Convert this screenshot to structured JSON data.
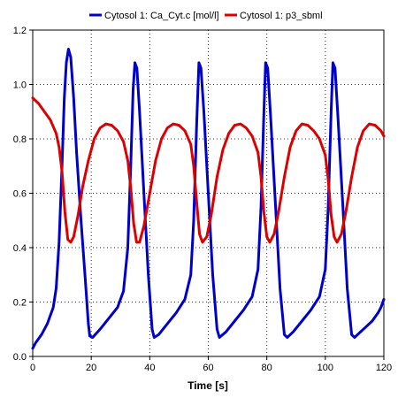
{
  "chart_data": {
    "type": "line",
    "xlabel": "Time [s]",
    "ylabel": "",
    "xlim": [
      0,
      120
    ],
    "ylim": [
      0.0,
      1.2
    ],
    "x_ticks": [
      0,
      20,
      40,
      60,
      80,
      100,
      120
    ],
    "y_ticks": [
      0.0,
      0.2,
      0.4,
      0.6,
      0.8,
      1.0,
      1.2
    ],
    "y_tick_labels": [
      "0.0",
      "0.2",
      "0.4",
      "0.6",
      "0.8",
      "1.0",
      "1.2"
    ],
    "grid": true,
    "legend_position": "top",
    "series": [
      {
        "name": "Cytosol 1: Ca_Cyt.c [mol/l]",
        "color": "#0000cc",
        "points": [
          [
            0,
            0.03
          ],
          [
            1,
            0.05
          ],
          [
            3,
            0.08
          ],
          [
            5,
            0.12
          ],
          [
            7,
            0.18
          ],
          [
            8,
            0.25
          ],
          [
            9,
            0.42
          ],
          [
            10,
            0.7
          ],
          [
            10.8,
            0.95
          ],
          [
            11.5,
            1.08
          ],
          [
            12.2,
            1.13
          ],
          [
            13,
            1.1
          ],
          [
            14,
            0.95
          ],
          [
            15,
            0.75
          ],
          [
            16.5,
            0.5
          ],
          [
            18,
            0.28
          ],
          [
            19,
            0.12
          ],
          [
            19.5,
            0.075
          ],
          [
            20.5,
            0.07
          ],
          [
            23,
            0.1
          ],
          [
            26,
            0.14
          ],
          [
            29,
            0.18
          ],
          [
            31,
            0.24
          ],
          [
            32.5,
            0.4
          ],
          [
            33.5,
            0.7
          ],
          [
            34.3,
            0.98
          ],
          [
            34.9,
            1.08
          ],
          [
            35.6,
            1.06
          ],
          [
            36.5,
            0.9
          ],
          [
            38,
            0.6
          ],
          [
            39.5,
            0.3
          ],
          [
            40.8,
            0.1
          ],
          [
            41.5,
            0.07
          ],
          [
            43,
            0.08
          ],
          [
            46,
            0.12
          ],
          [
            49,
            0.16
          ],
          [
            52,
            0.21
          ],
          [
            54,
            0.3
          ],
          [
            55,
            0.5
          ],
          [
            56,
            0.85
          ],
          [
            56.8,
            1.08
          ],
          [
            57.5,
            1.06
          ],
          [
            58.5,
            0.9
          ],
          [
            60,
            0.6
          ],
          [
            61.5,
            0.3
          ],
          [
            63,
            0.1
          ],
          [
            63.8,
            0.07
          ],
          [
            66,
            0.09
          ],
          [
            69,
            0.13
          ],
          [
            72,
            0.17
          ],
          [
            75,
            0.22
          ],
          [
            77,
            0.32
          ],
          [
            78,
            0.55
          ],
          [
            79,
            0.9
          ],
          [
            79.6,
            1.08
          ],
          [
            80.3,
            1.06
          ],
          [
            81.3,
            0.88
          ],
          [
            83,
            0.55
          ],
          [
            84.5,
            0.25
          ],
          [
            86,
            0.08
          ],
          [
            87,
            0.07
          ],
          [
            89,
            0.09
          ],
          [
            92,
            0.13
          ],
          [
            95,
            0.17
          ],
          [
            98,
            0.22
          ],
          [
            100,
            0.32
          ],
          [
            101,
            0.55
          ],
          [
            102,
            0.9
          ],
          [
            102.6,
            1.08
          ],
          [
            103.3,
            1.06
          ],
          [
            104.3,
            0.88
          ],
          [
            106,
            0.55
          ],
          [
            107.5,
            0.25
          ],
          [
            109,
            0.08
          ],
          [
            110,
            0.07
          ],
          [
            113,
            0.1
          ],
          [
            116,
            0.13
          ],
          [
            118,
            0.16
          ],
          [
            119,
            0.18
          ],
          [
            120,
            0.21
          ]
        ]
      },
      {
        "name": "Cytosol 1: p3_sbml",
        "color": "#dd0000",
        "points": [
          [
            0,
            0.95
          ],
          [
            2,
            0.93
          ],
          [
            4,
            0.9
          ],
          [
            6,
            0.87
          ],
          [
            8,
            0.82
          ],
          [
            9,
            0.77
          ],
          [
            10,
            0.68
          ],
          [
            11,
            0.53
          ],
          [
            12,
            0.43
          ],
          [
            13,
            0.42
          ],
          [
            14,
            0.44
          ],
          [
            15.5,
            0.52
          ],
          [
            17,
            0.62
          ],
          [
            19,
            0.72
          ],
          [
            21,
            0.8
          ],
          [
            23,
            0.84
          ],
          [
            25,
            0.855
          ],
          [
            27,
            0.85
          ],
          [
            29,
            0.83
          ],
          [
            31,
            0.79
          ],
          [
            32.5,
            0.72
          ],
          [
            33.5,
            0.62
          ],
          [
            34.5,
            0.49
          ],
          [
            35.5,
            0.42
          ],
          [
            36.5,
            0.42
          ],
          [
            38,
            0.48
          ],
          [
            40,
            0.6
          ],
          [
            42,
            0.72
          ],
          [
            44,
            0.8
          ],
          [
            46,
            0.84
          ],
          [
            48,
            0.855
          ],
          [
            50,
            0.85
          ],
          [
            52,
            0.83
          ],
          [
            54,
            0.78
          ],
          [
            55,
            0.7
          ],
          [
            56,
            0.57
          ],
          [
            57,
            0.45
          ],
          [
            58,
            0.42
          ],
          [
            59.5,
            0.44
          ],
          [
            61,
            0.52
          ],
          [
            63,
            0.66
          ],
          [
            65,
            0.76
          ],
          [
            67,
            0.82
          ],
          [
            69,
            0.85
          ],
          [
            71,
            0.855
          ],
          [
            73,
            0.84
          ],
          [
            75,
            0.81
          ],
          [
            77,
            0.75
          ],
          [
            78,
            0.66
          ],
          [
            79,
            0.53
          ],
          [
            80,
            0.44
          ],
          [
            81,
            0.42
          ],
          [
            82.5,
            0.45
          ],
          [
            84,
            0.53
          ],
          [
            86,
            0.66
          ],
          [
            88,
            0.77
          ],
          [
            90,
            0.83
          ],
          [
            92,
            0.855
          ],
          [
            94,
            0.85
          ],
          [
            96,
            0.83
          ],
          [
            98,
            0.8
          ],
          [
            100,
            0.74
          ],
          [
            101,
            0.65
          ],
          [
            102,
            0.52
          ],
          [
            103,
            0.44
          ],
          [
            104,
            0.42
          ],
          [
            105.5,
            0.45
          ],
          [
            107,
            0.53
          ],
          [
            109,
            0.66
          ],
          [
            111,
            0.77
          ],
          [
            113,
            0.83
          ],
          [
            115,
            0.855
          ],
          [
            117,
            0.85
          ],
          [
            119,
            0.83
          ],
          [
            120,
            0.81
          ]
        ]
      }
    ]
  }
}
